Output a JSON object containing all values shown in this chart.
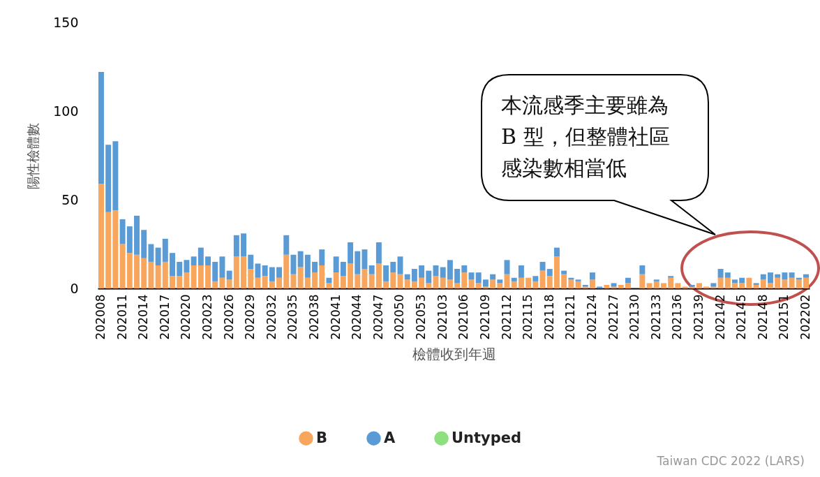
{
  "chart_data": {
    "type": "bar",
    "stacked": true,
    "xlabel": "檢體收到年週",
    "ylabel": "陽性檢體數",
    "categories": [
      "202008",
      null,
      null,
      "202011",
      null,
      null,
      "202014",
      null,
      null,
      "202017",
      null,
      null,
      "202020",
      null,
      null,
      "202023",
      null,
      null,
      "202026",
      null,
      null,
      "202029",
      null,
      null,
      "202032",
      null,
      null,
      "202035",
      null,
      null,
      "202038",
      null,
      null,
      "202041",
      null,
      null,
      "202044",
      null,
      null,
      "202047",
      null,
      null,
      "202050",
      null,
      null,
      "202053",
      null,
      null,
      "202103",
      null,
      null,
      "202106",
      null,
      null,
      "202109",
      null,
      null,
      "202112",
      null,
      null,
      "202115",
      null,
      null,
      "202118",
      null,
      null,
      "202121",
      null,
      null,
      "202124",
      null,
      null,
      "202127",
      null,
      null,
      "202130",
      null,
      null,
      "202133",
      null,
      null,
      "202136",
      null,
      null,
      "202139",
      null,
      null,
      "202142",
      null,
      null,
      "202145",
      null,
      null,
      "202148",
      null,
      null,
      "202151",
      null,
      null,
      "202202"
    ],
    "series": [
      {
        "name": "B",
        "color": "#f8a65e",
        "values": [
          59,
          43,
          44,
          25,
          20,
          19,
          17,
          15,
          13,
          15,
          7,
          7,
          9,
          13,
          13,
          13,
          4,
          6,
          5,
          18,
          18,
          11,
          6,
          7,
          4,
          6,
          19,
          8,
          12,
          6,
          9,
          13,
          3,
          9,
          7,
          14,
          8,
          11,
          8,
          14,
          4,
          9,
          8,
          5,
          4,
          6,
          3,
          7,
          6,
          5,
          3,
          9,
          5,
          3,
          1,
          5,
          3,
          8,
          4,
          6,
          6,
          4,
          10,
          7,
          18,
          8,
          5,
          4,
          1,
          5,
          0,
          2,
          1,
          2,
          3,
          0,
          8,
          3,
          4,
          3,
          6,
          3,
          1,
          1,
          3,
          1,
          1,
          6,
          6,
          3,
          3,
          6,
          2,
          5,
          3,
          6,
          5,
          6,
          5,
          6
        ]
      },
      {
        "name": "A",
        "color": "#5b9bd5",
        "values": [
          63,
          38,
          39,
          14,
          15,
          22,
          16,
          10,
          10,
          13,
          13,
          8,
          7,
          5,
          10,
          5,
          11,
          12,
          5,
          12,
          13,
          8,
          8,
          6,
          8,
          6,
          11,
          11,
          9,
          13,
          6,
          9,
          3,
          9,
          8,
          12,
          13,
          11,
          5,
          12,
          9,
          6,
          10,
          3,
          7,
          7,
          7,
          6,
          6,
          11,
          8,
          4,
          4,
          6,
          4,
          3,
          2,
          8,
          2,
          7,
          0,
          3,
          5,
          4,
          5,
          2,
          1,
          1,
          1,
          4,
          1,
          0,
          2,
          0,
          3,
          0,
          5,
          0,
          1,
          0,
          1,
          0,
          0,
          1,
          0,
          0,
          2,
          5,
          3,
          2,
          3,
          0,
          1,
          3,
          6,
          2,
          4,
          3,
          1,
          2
        ]
      },
      {
        "name": "Untyped",
        "color": "#8ee07e",
        "values": [
          0,
          0,
          0,
          0,
          0,
          0,
          0,
          0,
          0,
          0,
          0,
          0,
          0,
          0,
          0,
          0,
          0,
          0,
          0,
          0,
          0,
          0,
          0,
          0,
          0,
          0,
          0,
          0,
          0,
          0,
          0,
          0,
          0,
          0,
          0,
          0,
          0,
          0,
          0,
          0,
          0,
          0,
          0,
          0,
          0,
          0,
          0,
          0,
          0,
          0,
          0,
          0,
          0,
          0,
          0,
          0,
          0,
          0,
          0,
          0,
          0,
          0,
          0,
          0,
          0,
          0,
          0,
          0,
          0,
          0,
          0,
          0,
          0,
          0,
          0,
          0,
          0,
          0,
          0,
          0,
          0,
          0,
          0,
          0,
          0,
          0,
          0,
          0,
          0,
          0,
          0,
          0,
          0,
          0,
          0,
          0,
          0,
          0,
          0,
          0
        ]
      }
    ],
    "ylim": [
      0,
      150
    ],
    "yticks": [
      0,
      50,
      100,
      150
    ],
    "grid": false,
    "legend": "bottom",
    "annotations": [
      "本流感季主要雖為B 型，但整體社區感染數相當低",
      "Taiwan CDC 2022 (LARS)"
    ]
  }
}
